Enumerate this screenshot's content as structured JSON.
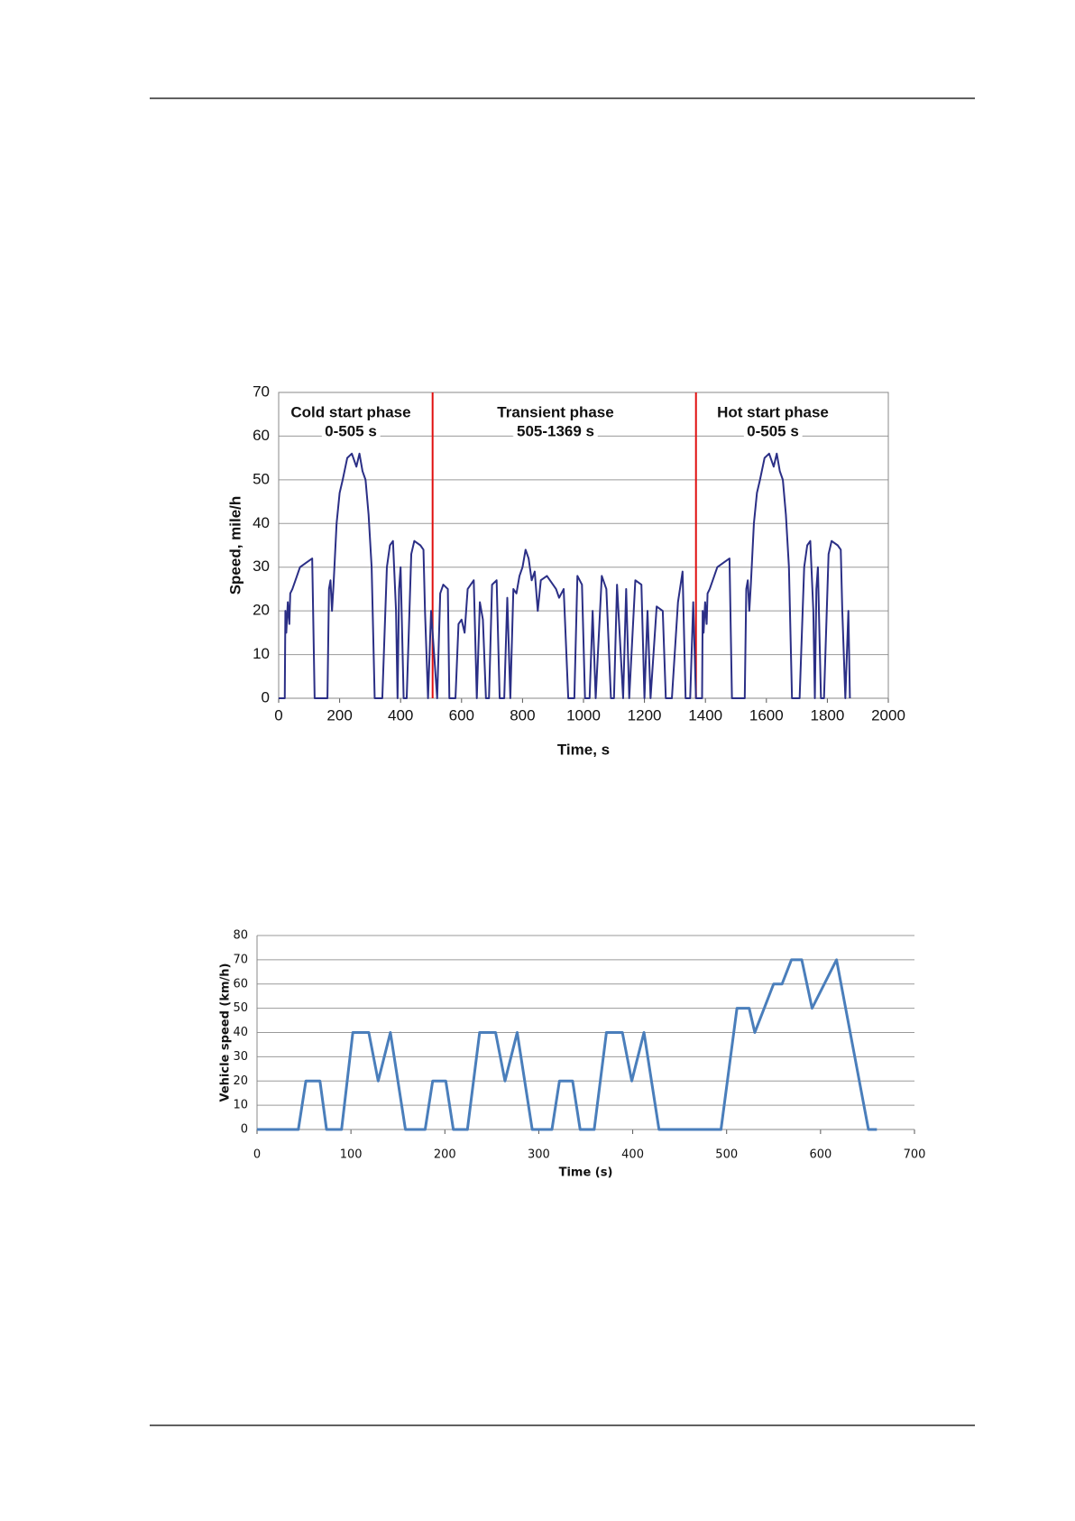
{
  "chart_data": [
    {
      "type": "line",
      "x_label": "Time, s",
      "y_label": "Speed, mile/h",
      "annotations": [
        "Cold start phase",
        "0-505 s",
        "Transient phase",
        "505-1369 s",
        "Hot start phase",
        "0-505 s"
      ],
      "vlines": [
        505,
        1369
      ],
      "vline_color": "#e01010",
      "x": [
        0,
        20,
        22,
        25,
        30,
        35,
        38,
        45,
        60,
        70,
        90,
        110,
        118,
        160,
        165,
        170,
        175,
        180,
        190,
        200,
        210,
        225,
        240,
        255,
        265,
        275,
        285,
        295,
        305,
        315,
        340,
        355,
        365,
        375,
        385,
        390,
        395,
        400,
        410,
        420,
        435,
        445,
        465,
        475,
        480,
        490,
        500,
        520,
        530,
        540,
        555,
        560,
        580,
        590,
        600,
        610,
        620,
        640,
        650,
        660,
        670,
        680,
        690,
        700,
        715,
        725,
        740,
        750,
        760,
        770,
        780,
        790,
        800,
        810,
        820,
        830,
        840,
        850,
        860,
        880,
        900,
        910,
        920,
        935,
        950,
        970,
        980,
        995,
        1005,
        1020,
        1030,
        1040,
        1060,
        1075,
        1090,
        1100,
        1110,
        1130,
        1140,
        1150,
        1170,
        1190,
        1200,
        1210,
        1220,
        1240,
        1260,
        1270,
        1290,
        1310,
        1325,
        1335,
        1350,
        1360,
        1369,
        1389,
        1391,
        1394,
        1399,
        1404,
        1407,
        1414,
        1429,
        1439,
        1459,
        1479,
        1487,
        1529,
        1534,
        1539,
        1544,
        1549,
        1559,
        1569,
        1579,
        1594,
        1609,
        1624,
        1634,
        1644,
        1654,
        1664,
        1674,
        1684,
        1709,
        1724,
        1734,
        1744,
        1754,
        1759,
        1764,
        1769,
        1779,
        1789,
        1804,
        1814,
        1834,
        1844,
        1849,
        1859,
        1869,
        1874
      ],
      "series": [
        {
          "color": "#2b2f86",
          "values": [
            0,
            0,
            20,
            15,
            22,
            17,
            24,
            25,
            28,
            30,
            31,
            32,
            0,
            0,
            25,
            27,
            20,
            26,
            40,
            47,
            50,
            55,
            56,
            53,
            56,
            52,
            50,
            42,
            30,
            0,
            0,
            30,
            35,
            36,
            20,
            0,
            25,
            30,
            0,
            0,
            33,
            36,
            35,
            34,
            20,
            0,
            20,
            0,
            24,
            26,
            25,
            0,
            0,
            17,
            18,
            15,
            25,
            27,
            0,
            22,
            18,
            0,
            0,
            26,
            27,
            0,
            0,
            23,
            0,
            25,
            24,
            28,
            30,
            34,
            32,
            27,
            29,
            20,
            27,
            28,
            26,
            25,
            23,
            25,
            0,
            0,
            28,
            26,
            0,
            0,
            20,
            0,
            28,
            25,
            0,
            0,
            26,
            0,
            25,
            0,
            27,
            26,
            0,
            20,
            0,
            21,
            20,
            0,
            0,
            22,
            29,
            0,
            0,
            22,
            0,
            0,
            20,
            15,
            22,
            17,
            24,
            25,
            28,
            30,
            31,
            32,
            0,
            0,
            25,
            27,
            20,
            26,
            40,
            47,
            50,
            55,
            56,
            53,
            56,
            52,
            50,
            42,
            30,
            0,
            0,
            30,
            35,
            36,
            20,
            0,
            25,
            30,
            0,
            0,
            33,
            36,
            35,
            34,
            20,
            0,
            20,
            0
          ]
        }
      ],
      "xlim": [
        0,
        2000
      ],
      "xticks": [
        0,
        200,
        400,
        600,
        800,
        1000,
        1200,
        1400,
        1600,
        1800,
        2000
      ],
      "ylim": [
        0,
        70
      ],
      "yticks": [
        0,
        10,
        20,
        30,
        40,
        50,
        60,
        70
      ],
      "grid": true
    },
    {
      "type": "line",
      "x_label": "Time (s)",
      "y_label": "Vehicle speed (km/h)",
      "x": [
        0,
        44,
        52,
        67,
        74,
        90,
        102,
        119,
        129,
        142,
        158,
        179,
        187,
        201,
        209,
        224,
        237,
        254,
        264,
        277,
        293,
        314,
        322,
        336,
        344,
        359,
        372,
        389,
        399,
        412,
        428,
        494,
        511,
        524,
        530,
        550,
        559,
        569,
        580,
        591,
        617,
        651,
        660
      ],
      "series": [
        {
          "color": "#4a7ebb",
          "values": [
            0,
            0,
            20,
            20,
            0,
            0,
            40,
            40,
            20,
            40,
            0,
            0,
            20,
            20,
            0,
            0,
            40,
            40,
            20,
            40,
            0,
            0,
            20,
            20,
            0,
            0,
            40,
            40,
            20,
            40,
            0,
            0,
            50,
            50,
            40,
            60,
            60,
            70,
            70,
            50,
            70,
            0,
            0
          ]
        }
      ],
      "xlim": [
        0,
        700
      ],
      "xticks": [
        0,
        100,
        200,
        300,
        400,
        500,
        600,
        700
      ],
      "ylim": [
        0,
        80
      ],
      "yticks": [
        0,
        10,
        20,
        30,
        40,
        50,
        60,
        70,
        80
      ],
      "grid": true
    }
  ]
}
